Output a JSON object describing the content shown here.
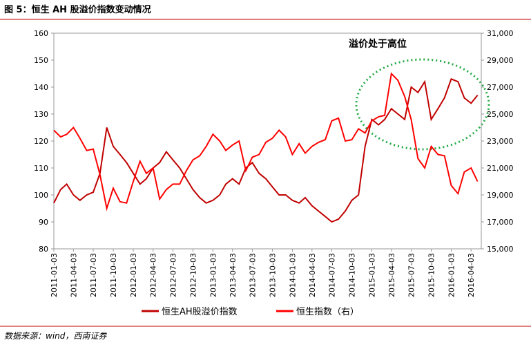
{
  "chart_data": {
    "type": "line",
    "title": "图 5：恒生 AH 股溢价指数变动情况",
    "annotation": "溢价处于高位",
    "source": "数据来源：wind，西南证券",
    "x": [
      "2011-01-03",
      "2011-02-03",
      "2011-03-03",
      "2011-04-03",
      "2011-05-03",
      "2011-06-03",
      "2011-07-03",
      "2011-08-03",
      "2011-09-03",
      "2011-10-03",
      "2011-11-03",
      "2011-12-03",
      "2012-01-03",
      "2012-02-03",
      "2012-03-03",
      "2012-04-03",
      "2012-05-03",
      "2012-06-03",
      "2012-07-03",
      "2012-08-03",
      "2012-09-03",
      "2012-10-03",
      "2012-11-03",
      "2012-12-03",
      "2013-01-03",
      "2013-02-03",
      "2013-03-03",
      "2013-04-03",
      "2013-05-03",
      "2013-06-03",
      "2013-07-03",
      "2013-08-03",
      "2013-09-03",
      "2013-10-03",
      "2013-11-03",
      "2013-12-03",
      "2014-01-03",
      "2014-02-03",
      "2014-03-03",
      "2014-04-03",
      "2014-05-03",
      "2014-06-03",
      "2014-07-03",
      "2014-08-03",
      "2014-09-03",
      "2014-10-03",
      "2014-11-03",
      "2014-12-03",
      "2015-01-03",
      "2015-02-03",
      "2015-03-03",
      "2015-04-03",
      "2015-05-03",
      "2015-06-03",
      "2015-07-03",
      "2015-08-03",
      "2015-09-03",
      "2015-10-03",
      "2015-11-03",
      "2015-12-03",
      "2016-01-03",
      "2016-02-03",
      "2016-03-03",
      "2016-04-03",
      "2016-05-03"
    ],
    "series": [
      {
        "name": "恒生AH股溢价指数",
        "color": "#c00000",
        "axis": "y",
        "values": [
          97,
          102,
          104,
          100,
          98,
          100,
          101,
          108,
          125,
          118,
          115,
          112,
          108,
          104,
          106,
          110,
          112,
          116,
          113,
          110,
          106,
          102,
          99,
          97,
          98,
          100,
          104,
          106,
          104,
          110,
          112,
          108,
          106,
          103,
          100,
          100,
          98,
          97,
          99,
          96,
          94,
          92,
          90,
          91,
          94,
          98,
          100,
          118,
          128,
          126,
          128,
          132,
          130,
          128,
          140,
          138,
          142,
          128,
          132,
          136,
          143,
          142,
          136,
          134,
          137
        ]
      },
      {
        "name": "恒生指数（右）",
        "color": "#ff0000",
        "axis": "y2",
        "values": [
          23800,
          23300,
          23500,
          24000,
          23200,
          22300,
          22400,
          20500,
          18000,
          19500,
          18500,
          18400,
          20000,
          21500,
          20600,
          21000,
          18700,
          19400,
          19800,
          19800,
          20800,
          21600,
          21900,
          22600,
          23500,
          23000,
          22300,
          22700,
          23000,
          20800,
          21800,
          22000,
          22900,
          23200,
          23800,
          23300,
          22000,
          22800,
          22100,
          22600,
          22900,
          23100,
          24500,
          24700,
          23000,
          23100,
          23900,
          23600,
          24500,
          24800,
          24900,
          28000,
          27500,
          26300,
          24600,
          21700,
          21000,
          22600,
          22000,
          21900,
          19700,
          19100,
          20700,
          21000,
          20000
        ]
      }
    ],
    "xlim": [
      "2011-01-03",
      "2016-05-20"
    ],
    "xticks": [
      "2011-01-03",
      "2011-04-03",
      "2011-07-03",
      "2011-10-03",
      "2012-01-03",
      "2012-04-03",
      "2012-07-03",
      "2012-10-03",
      "2013-01-03",
      "2013-04-03",
      "2013-07-03",
      "2013-10-03",
      "2014-01-03",
      "2014-04-03",
      "2014-07-03",
      "2014-10-03",
      "2015-01-03",
      "2015-04-03",
      "2015-07-03",
      "2015-10-03",
      "2016-01-03",
      "2016-04-03"
    ],
    "ylim": [
      80,
      160
    ],
    "yticks": [
      80,
      90,
      100,
      110,
      120,
      130,
      140,
      150,
      160
    ],
    "y2lim": [
      15000,
      31000
    ],
    "y2ticks": [
      {
        "value": 15000,
        "label": "15,000"
      },
      {
        "value": 17000,
        "label": "17,000"
      },
      {
        "value": 19000,
        "label": "19,000"
      },
      {
        "value": 21000,
        "label": "21,000"
      },
      {
        "value": 23000,
        "label": "23,000"
      },
      {
        "value": 25000,
        "label": "25,000"
      },
      {
        "value": 27000,
        "label": "27,000"
      },
      {
        "value": 29000,
        "label": "29,000"
      },
      {
        "value": 31000,
        "label": "31,000"
      }
    ],
    "grid": false,
    "legend": "bottom"
  }
}
